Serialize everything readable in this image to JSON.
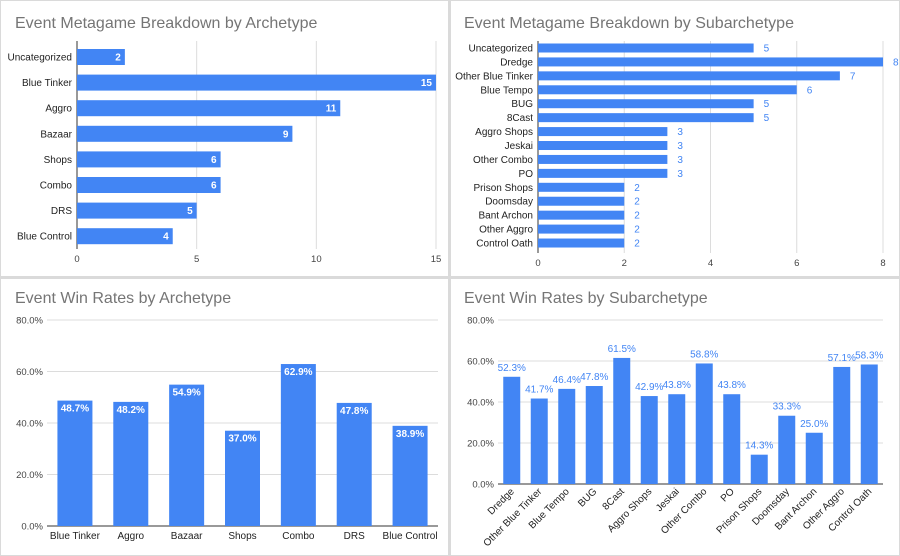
{
  "chart_data": [
    {
      "type": "bar",
      "orientation": "horizontal",
      "title": "Event Metagame Breakdown by Archetype",
      "categories": [
        "Uncategorized",
        "Blue Tinker",
        "Aggro",
        "Bazaar",
        "Shops",
        "Combo",
        "DRS",
        "Blue Control"
      ],
      "values": [
        2,
        15,
        11,
        9,
        6,
        6,
        5,
        4
      ],
      "xlim": [
        0,
        15
      ],
      "ticks": [
        "0",
        "5",
        "10",
        "15"
      ],
      "tick_values": [
        0,
        5,
        10,
        15
      ],
      "grid": true,
      "color": "#4285f4"
    },
    {
      "type": "bar",
      "orientation": "horizontal",
      "title": "Event Metagame Breakdown by Subarchetype",
      "categories": [
        "Uncategorized",
        "Dredge",
        "Other Blue Tinker",
        "Blue Tempo",
        "BUG",
        "8Cast",
        "Aggro Shops",
        "Jeskai",
        "Other Combo",
        "PO",
        "Prison Shops",
        "Doomsday",
        "Bant Archon",
        "Other Aggro",
        "Control Oath"
      ],
      "values": [
        5,
        8,
        7,
        6,
        5,
        5,
        3,
        3,
        3,
        3,
        2,
        2,
        2,
        2,
        2
      ],
      "xlim": [
        0,
        8
      ],
      "ticks": [
        "0",
        "2",
        "4",
        "6",
        "8"
      ],
      "tick_values": [
        0,
        2,
        4,
        6,
        8
      ],
      "grid": true,
      "color": "#4285f4"
    },
    {
      "type": "bar",
      "orientation": "vertical",
      "title": "Event Win Rates by Archetype",
      "categories": [
        "Blue Tinker",
        "Aggro",
        "Bazaar",
        "Shops",
        "Combo",
        "DRS",
        "Blue Control"
      ],
      "values": [
        48.7,
        48.2,
        54.9,
        37.0,
        62.9,
        47.8,
        38.9
      ],
      "labels": [
        "48.7%",
        "48.2%",
        "54.9%",
        "37.0%",
        "62.9%",
        "47.8%",
        "38.9%"
      ],
      "ylim": [
        0,
        80
      ],
      "ticks": [
        "0.0%",
        "20.0%",
        "40.0%",
        "60.0%",
        "80.0%"
      ],
      "tick_values": [
        0,
        20,
        40,
        60,
        80
      ],
      "grid": true,
      "color": "#4285f4"
    },
    {
      "type": "bar",
      "orientation": "vertical",
      "title": "Event Win Rates by Subarchetype",
      "categories": [
        "Dredge",
        "Other Blue Tinker",
        "Blue Tempo",
        "BUG",
        "8Cast",
        "Aggro Shops",
        "Jeskai",
        "Other Combo",
        "PO",
        "Prison Shops",
        "Doomsday",
        "Bant Archon",
        "Other Aggro",
        "Control Oath"
      ],
      "values": [
        52.3,
        41.7,
        46.4,
        47.8,
        61.5,
        42.9,
        43.8,
        58.8,
        43.8,
        14.3,
        33.3,
        25.0,
        57.1,
        58.3
      ],
      "labels": [
        "52.3%",
        "41.7%",
        "46.4%",
        "47.8%",
        "61.5%",
        "42.9%",
        "43.8%",
        "58.8%",
        "43.8%",
        "14.3%",
        "33.3%",
        "25.0%",
        "57.1%",
        "58.3%"
      ],
      "ylim": [
        0,
        80
      ],
      "ticks": [
        "0.0%",
        "20.0%",
        "40.0%",
        "60.0%",
        "80.0%"
      ],
      "tick_values": [
        0,
        20,
        40,
        60,
        80
      ],
      "grid": true,
      "color": "#4285f4"
    }
  ]
}
